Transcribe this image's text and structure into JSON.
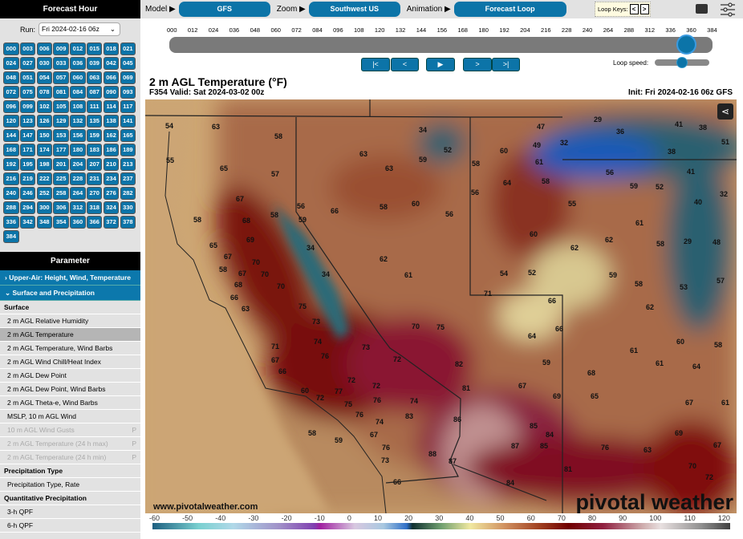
{
  "sidebar": {
    "forecast_hour_title": "Forecast Hour",
    "run_label": "Run:",
    "run_value": "Fri 2024-02-16 06z",
    "hours": [
      "000",
      "003",
      "006",
      "009",
      "012",
      "015",
      "018",
      "021",
      "024",
      "027",
      "030",
      "033",
      "036",
      "039",
      "042",
      "045",
      "048",
      "051",
      "054",
      "057",
      "060",
      "063",
      "066",
      "069",
      "072",
      "075",
      "078",
      "081",
      "084",
      "087",
      "090",
      "093",
      "096",
      "099",
      "102",
      "105",
      "108",
      "111",
      "114",
      "117",
      "120",
      "123",
      "126",
      "129",
      "132",
      "135",
      "138",
      "141",
      "144",
      "147",
      "150",
      "153",
      "156",
      "159",
      "162",
      "165",
      "168",
      "171",
      "174",
      "177",
      "180",
      "183",
      "186",
      "189",
      "192",
      "195",
      "198",
      "201",
      "204",
      "207",
      "210",
      "213",
      "216",
      "219",
      "222",
      "225",
      "228",
      "231",
      "234",
      "237",
      "240",
      "246",
      "252",
      "258",
      "264",
      "270",
      "276",
      "282",
      "288",
      "294",
      "300",
      "306",
      "312",
      "318",
      "324",
      "330",
      "336",
      "342",
      "348",
      "354",
      "360",
      "366",
      "372",
      "378",
      "384"
    ],
    "parameter_title": "Parameter",
    "groups": [
      {
        "label": "Upper-Air: Height, Wind, Temperature",
        "expanded": false
      },
      {
        "label": "Surface and Precipitation",
        "expanded": true
      }
    ],
    "sections": {
      "surface": "Surface",
      "precip_type": "Precipitation Type",
      "qpf": "Quantitative Precipitation"
    },
    "surface_items": [
      {
        "label": "2 m AGL Relative Humidity"
      },
      {
        "label": "2 m AGL Temperature",
        "selected": true
      },
      {
        "label": "2 m AGL Temperature, Wind Barbs"
      },
      {
        "label": "2 m AGL Wind Chill/Heat Index"
      },
      {
        "label": "2 m AGL Dew Point"
      },
      {
        "label": "2 m AGL Dew Point, Wind Barbs"
      },
      {
        "label": "2 m AGL Theta-e, Wind Barbs"
      },
      {
        "label": "MSLP, 10 m AGL Wind"
      },
      {
        "label": "10 m AGL Wind Gusts",
        "disabled": true,
        "badge": "P"
      },
      {
        "label": "2 m AGL Temperature (24 h max)",
        "disabled": true,
        "badge": "P"
      },
      {
        "label": "2 m AGL Temperature (24 h min)",
        "disabled": true,
        "badge": "P"
      }
    ],
    "precip_type_items": [
      "Precipitation Type, Rate"
    ],
    "qpf_items": [
      "3-h QPF",
      "6-h QPF"
    ]
  },
  "topbar": {
    "model_label": "Model ▶",
    "model_value": "GFS",
    "zoom_label": "Zoom ▶",
    "zoom_value": "Southwest US",
    "animation_label": "Animation ▶",
    "animation_value": "Forecast Loop",
    "loop_keys_label": "Loop Keys:",
    "loop_prev": "<",
    "loop_next": ">",
    "keyboard_icon": "keyboard-icon",
    "settings_icon": "sliders-icon"
  },
  "timeline": {
    "ticks": [
      "000",
      "012",
      "024",
      "036",
      "048",
      "060",
      "072",
      "084",
      "096",
      "108",
      "120",
      "132",
      "144",
      "156",
      "168",
      "180",
      "192",
      "204",
      "216",
      "228",
      "240",
      "264",
      "288",
      "312",
      "336",
      "360",
      "384"
    ],
    "current_hour": 354,
    "controls": {
      "first": "|<",
      "prev": "<",
      "play": "▶",
      "next": ">",
      "last": ">|"
    },
    "loop_speed_label": "Loop speed:",
    "loop_speed_fraction": 0.5
  },
  "map": {
    "title": "2 m AGL Temperature (°F)",
    "valid": "F354 Valid: Sat 2024-03-02 00z",
    "init": "Init: Fri 2024-02-16 06z GFS",
    "watermark": "www.pivotalweather.com",
    "logo": "pivotal weather",
    "share_icon": "share-icon",
    "labels": [
      "54",
      "63",
      "58",
      "55",
      "65",
      "57",
      "67",
      "58",
      "68",
      "58",
      "56",
      "59",
      "69",
      "65",
      "67",
      "70",
      "58",
      "67",
      "70",
      "68",
      "70",
      "66",
      "63",
      "34",
      "34",
      "63",
      "63",
      "34",
      "59",
      "52",
      "66",
      "58",
      "60",
      "56",
      "62",
      "61",
      "75",
      "73",
      "74",
      "76",
      "73",
      "72",
      "70",
      "75",
      "71",
      "67",
      "66",
      "60",
      "72",
      "77",
      "72",
      "72",
      "75",
      "76",
      "74",
      "76",
      "83",
      "74",
      "67",
      "58",
      "59",
      "76",
      "73",
      "88",
      "66",
      "82",
      "81",
      "86",
      "87",
      "84",
      "85",
      "84",
      "87",
      "85",
      "81",
      "76",
      "67",
      "69",
      "65",
      "59",
      "68",
      "64",
      "66",
      "71",
      "66",
      "54",
      "52",
      "60",
      "62",
      "55",
      "64",
      "58",
      "61",
      "60",
      "49",
      "47",
      "32",
      "29",
      "36",
      "41",
      "38",
      "51",
      "38",
      "56",
      "41",
      "59",
      "52",
      "40",
      "32",
      "61",
      "58",
      "29",
      "48",
      "62",
      "59",
      "58",
      "53",
      "57",
      "58",
      "56",
      "62",
      "60",
      "58",
      "61",
      "61",
      "64",
      "67",
      "61",
      "69",
      "67",
      "63",
      "70",
      "72"
    ]
  },
  "colorbar": {
    "unit": "°F",
    "ticks": [
      "-60",
      "-50",
      "-40",
      "-30",
      "-20",
      "-10",
      "0",
      "10",
      "20",
      "30",
      "40",
      "50",
      "60",
      "70",
      "80",
      "90",
      "100",
      "110",
      "120"
    ]
  }
}
